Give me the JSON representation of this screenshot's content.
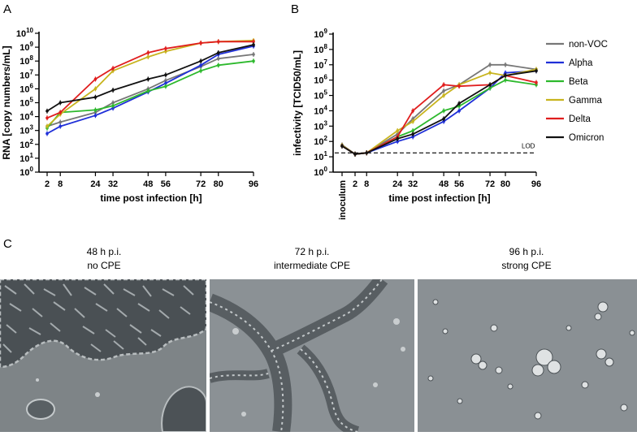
{
  "panels": {
    "a": {
      "letter": "A"
    },
    "b": {
      "letter": "B"
    },
    "c": {
      "letter": "C"
    }
  },
  "colors": {
    "non-VOC": "#777777",
    "Alpha": "#1f2fd8",
    "Beta": "#2db92d",
    "Gamma": "#c8b41e",
    "Delta": "#e01e1e",
    "Omicron": "#111111"
  },
  "chart_data": [
    {
      "type": "line",
      "panel": "A",
      "xlabel": "time post infection [h]",
      "ylabel": "RNA [copy numbers/mL]",
      "x": [
        2,
        8,
        24,
        32,
        48,
        56,
        72,
        80,
        96
      ],
      "x_ticks": [
        "2",
        "8",
        "24",
        "32",
        "48",
        "56",
        "72",
        "80",
        "96"
      ],
      "y_scale": "log10",
      "ylim": [
        1,
        10000000000
      ],
      "y_ticks": [
        {
          "exp": 0,
          "label": "10",
          "sup": "0"
        },
        {
          "exp": 1,
          "label": "10",
          "sup": "1"
        },
        {
          "exp": 2,
          "label": "10",
          "sup": "2"
        },
        {
          "exp": 3,
          "label": "10",
          "sup": "3"
        },
        {
          "exp": 4,
          "label": "10",
          "sup": "4"
        },
        {
          "exp": 5,
          "label": "10",
          "sup": "5"
        },
        {
          "exp": 6,
          "label": "10",
          "sup": "6"
        },
        {
          "exp": 7,
          "label": "10",
          "sup": "7"
        },
        {
          "exp": 8,
          "label": "10",
          "sup": "8"
        },
        {
          "exp": 9,
          "label": "10",
          "sup": "9"
        },
        {
          "exp": 10,
          "label": "10",
          "sup": "10"
        }
      ],
      "series": [
        {
          "name": "non-VOC",
          "values": [
            2000,
            4000,
            20000,
            100000,
            1000000,
            4000000,
            40000000,
            150000000,
            300000000
          ]
        },
        {
          "name": "Alpha",
          "values": [
            600,
            2000,
            12000,
            40000,
            600000,
            2500000,
            50000000,
            300000000,
            1200000000
          ]
        },
        {
          "name": "Beta",
          "values": [
            1500,
            20000,
            30000,
            60000,
            700000,
            1500000,
            20000000,
            50000000,
            100000000
          ]
        },
        {
          "name": "Gamma",
          "values": [
            2000,
            15000,
            1000000,
            20000000,
            200000000,
            500000000,
            2000000000,
            2500000000,
            3000000000
          ]
        },
        {
          "name": "Delta",
          "values": [
            8000,
            20000,
            5000000,
            30000000,
            400000000,
            800000000,
            2000000000,
            2500000000,
            2500000000
          ]
        },
        {
          "name": "Omicron",
          "values": [
            25000,
            100000,
            250000,
            800000,
            5000000,
            10000000,
            100000000,
            400000000,
            1500000000
          ]
        }
      ]
    },
    {
      "type": "line",
      "panel": "B",
      "xlabel": "time post infection [h]",
      "ylabel": "infectivity [TCID50/mL]",
      "x": [
        "inoculum",
        2,
        8,
        24,
        32,
        48,
        56,
        72,
        80,
        96
      ],
      "x_ticks": [
        "inoculum",
        "2",
        "8",
        "24",
        "32",
        "48",
        "56",
        "72",
        "80",
        "96"
      ],
      "y_scale": "log10",
      "ylim": [
        1,
        1000000000
      ],
      "y_ticks": [
        {
          "exp": 0,
          "label": "10",
          "sup": "0"
        },
        {
          "exp": 1,
          "label": "10",
          "sup": "1"
        },
        {
          "exp": 2,
          "label": "10",
          "sup": "2"
        },
        {
          "exp": 3,
          "label": "10",
          "sup": "3"
        },
        {
          "exp": 4,
          "label": "10",
          "sup": "4"
        },
        {
          "exp": 5,
          "label": "10",
          "sup": "5"
        },
        {
          "exp": 6,
          "label": "10",
          "sup": "6"
        },
        {
          "exp": 7,
          "label": "10",
          "sup": "7"
        },
        {
          "exp": 8,
          "label": "10",
          "sup": "8"
        },
        {
          "exp": 9,
          "label": "10",
          "sup": "9"
        }
      ],
      "lod": {
        "label": "LOD",
        "value": 18
      },
      "series": [
        {
          "name": "non-VOC",
          "values": [
            60,
            15,
            18,
            300,
            3000,
            200000,
            500000,
            10000000,
            10000000,
            5000000
          ]
        },
        {
          "name": "Alpha",
          "values": [
            50,
            15,
            18,
            100,
            200,
            2000,
            10000,
            300000,
            3000000,
            4000000
          ]
        },
        {
          "name": "Beta",
          "values": [
            50,
            15,
            18,
            200,
            500,
            10000,
            20000,
            300000,
            1000000,
            500000
          ]
        },
        {
          "name": "Gamma",
          "values": [
            55,
            15,
            18,
            500,
            2000,
            100000,
            500000,
            3000000,
            2000000,
            5000000
          ]
        },
        {
          "name": "Delta",
          "values": [
            50,
            15,
            18,
            200,
            10000,
            500000,
            400000,
            500000,
            2000000,
            700000
          ]
        },
        {
          "name": "Omicron",
          "values": [
            50,
            15,
            18,
            150,
            300,
            3000,
            30000,
            500000,
            2000000,
            4000000
          ]
        }
      ],
      "legend": {
        "placement": "right",
        "entries": [
          "non-VOC",
          "Alpha",
          "Beta",
          "Gamma",
          "Delta",
          "Omicron"
        ]
      }
    }
  ],
  "micrographs": [
    {
      "line1": "48 h p.i.",
      "line2": "no CPE"
    },
    {
      "line1": "72 h p.i.",
      "line2": "intermediate CPE"
    },
    {
      "line1": "96 h p.i.",
      "line2": "strong CPE"
    }
  ]
}
